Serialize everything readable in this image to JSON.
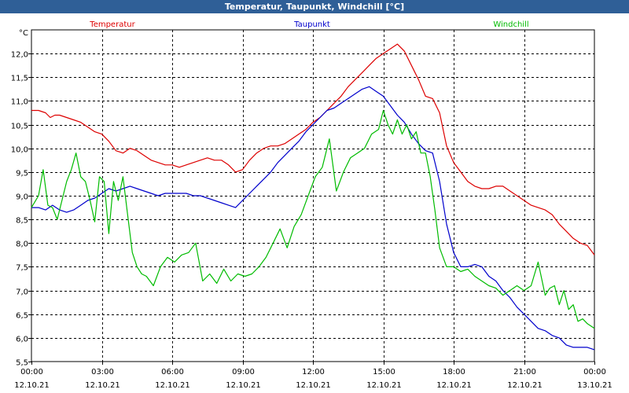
{
  "window": {
    "title": "Temperatur, Taupunkt, Windchill [°C]"
  },
  "chart_data": {
    "type": "line",
    "title": "Temperatur, Taupunkt, Windchill [°C]",
    "ylabel": "°C",
    "ylim": [
      5.5,
      12.5
    ],
    "xlim": [
      0,
      24
    ],
    "grid": true,
    "legend": "top",
    "yticks": [
      "5,5",
      "6,0",
      "6,5",
      "7,0",
      "7,5",
      "8,0",
      "8,5",
      "9,0",
      "9,5",
      "10,0",
      "10,5",
      "11,0",
      "11,5",
      "12,0"
    ],
    "xticks": [
      {
        "time": "00:00",
        "date": "12.10.21"
      },
      {
        "time": "03:00",
        "date": "12.10.21"
      },
      {
        "time": "06:00",
        "date": "12.10.21"
      },
      {
        "time": "09:00",
        "date": "12.10.21"
      },
      {
        "time": "12:00",
        "date": "12.10.21"
      },
      {
        "time": "15:00",
        "date": "12.10.21"
      },
      {
        "time": "18:00",
        "date": "12.10.21"
      },
      {
        "time": "21:00",
        "date": "12.10.21"
      },
      {
        "time": "00:00",
        "date": "13.10.21"
      }
    ],
    "series": [
      {
        "name": "Temperatur",
        "color": "#dd0000",
        "x": [
          0,
          0.3,
          0.6,
          0.8,
          1.0,
          1.2,
          1.5,
          1.8,
          2.1,
          2.4,
          2.7,
          3.0,
          3.3,
          3.6,
          3.9,
          4.2,
          4.5,
          4.8,
          5.1,
          5.4,
          5.7,
          6.0,
          6.3,
          6.6,
          6.9,
          7.2,
          7.5,
          7.8,
          8.1,
          8.4,
          8.7,
          9.0,
          9.3,
          9.6,
          9.9,
          10.2,
          10.5,
          10.8,
          11.1,
          11.4,
          11.7,
          12.0,
          12.3,
          12.6,
          12.9,
          13.2,
          13.5,
          13.8,
          14.1,
          14.4,
          14.7,
          15.0,
          15.3,
          15.6,
          15.9,
          16.2,
          16.5,
          16.8,
          17.1,
          17.4,
          17.7,
          18.0,
          18.3,
          18.6,
          18.9,
          19.2,
          19.5,
          19.8,
          20.1,
          20.4,
          20.7,
          21.0,
          21.3,
          21.6,
          21.9,
          22.2,
          22.5,
          22.8,
          23.1,
          23.4,
          23.7,
          24.0
        ],
        "y": [
          10.8,
          10.8,
          10.75,
          10.65,
          10.7,
          10.7,
          10.65,
          10.6,
          10.55,
          10.45,
          10.35,
          10.3,
          10.15,
          9.95,
          9.9,
          10.0,
          9.95,
          9.85,
          9.75,
          9.7,
          9.65,
          9.65,
          9.6,
          9.65,
          9.7,
          9.75,
          9.8,
          9.75,
          9.75,
          9.65,
          9.5,
          9.55,
          9.75,
          9.9,
          10.0,
          10.05,
          10.05,
          10.1,
          10.2,
          10.3,
          10.4,
          10.55,
          10.65,
          10.8,
          10.95,
          11.1,
          11.3,
          11.45,
          11.6,
          11.75,
          11.9,
          12.0,
          12.1,
          12.2,
          12.05,
          11.75,
          11.45,
          11.1,
          11.05,
          10.75,
          10.05,
          9.7,
          9.5,
          9.3,
          9.2,
          9.15,
          9.15,
          9.2,
          9.2,
          9.1,
          9.0,
          8.9,
          8.8,
          8.75,
          8.7,
          8.6,
          8.4,
          8.25,
          8.1,
          8.0,
          7.95,
          7.75
        ]
      },
      {
        "name": "Taupunkt",
        "color": "#0000cc",
        "x": [
          0,
          0.3,
          0.6,
          0.9,
          1.2,
          1.5,
          1.8,
          2.1,
          2.4,
          2.7,
          3.0,
          3.3,
          3.6,
          3.9,
          4.2,
          4.5,
          4.8,
          5.1,
          5.4,
          5.7,
          6.0,
          6.3,
          6.6,
          6.9,
          7.2,
          7.5,
          7.8,
          8.1,
          8.4,
          8.7,
          9.0,
          9.3,
          9.6,
          9.9,
          10.2,
          10.5,
          10.8,
          11.1,
          11.4,
          11.7,
          12.0,
          12.3,
          12.6,
          12.9,
          13.2,
          13.5,
          13.8,
          14.1,
          14.4,
          14.7,
          15.0,
          15.3,
          15.6,
          15.9,
          16.2,
          16.5,
          16.8,
          17.1,
          17.4,
          17.7,
          18.0,
          18.3,
          18.6,
          18.9,
          19.2,
          19.5,
          19.8,
          20.1,
          20.4,
          20.7,
          21.0,
          21.3,
          21.6,
          21.9,
          22.2,
          22.5,
          22.8,
          23.1,
          23.4,
          23.7,
          24.0
        ],
        "y": [
          8.75,
          8.75,
          8.7,
          8.8,
          8.7,
          8.65,
          8.7,
          8.8,
          8.9,
          8.95,
          9.05,
          9.15,
          9.1,
          9.15,
          9.2,
          9.15,
          9.1,
          9.05,
          9.0,
          9.05,
          9.05,
          9.05,
          9.05,
          9.0,
          9.0,
          8.95,
          8.9,
          8.85,
          8.8,
          8.75,
          8.9,
          9.05,
          9.2,
          9.35,
          9.5,
          9.7,
          9.85,
          10.0,
          10.15,
          10.35,
          10.5,
          10.65,
          10.8,
          10.85,
          10.95,
          11.05,
          11.15,
          11.25,
          11.3,
          11.2,
          11.1,
          10.9,
          10.7,
          10.55,
          10.3,
          10.1,
          9.95,
          9.9,
          9.3,
          8.4,
          7.8,
          7.5,
          7.5,
          7.55,
          7.5,
          7.3,
          7.2,
          7.0,
          6.85,
          6.65,
          6.5,
          6.35,
          6.2,
          6.15,
          6.05,
          6.0,
          5.85,
          5.8,
          5.8,
          5.8,
          5.75
        ]
      },
      {
        "name": "Windchill",
        "color": "#00bb00",
        "x": [
          0,
          0.3,
          0.5,
          0.7,
          0.9,
          1.1,
          1.3,
          1.5,
          1.7,
          1.9,
          2.1,
          2.3,
          2.5,
          2.7,
          2.9,
          3.1,
          3.3,
          3.5,
          3.7,
          3.9,
          4.1,
          4.3,
          4.5,
          4.7,
          4.9,
          5.2,
          5.5,
          5.8,
          6.1,
          6.4,
          6.7,
          7.0,
          7.3,
          7.6,
          7.9,
          8.2,
          8.5,
          8.8,
          9.1,
          9.4,
          9.7,
          10.0,
          10.3,
          10.6,
          10.9,
          11.2,
          11.5,
          11.8,
          12.1,
          12.4,
          12.7,
          13.0,
          13.3,
          13.6,
          13.9,
          14.2,
          14.5,
          14.8,
          15.0,
          15.2,
          15.4,
          15.6,
          15.8,
          16.0,
          16.2,
          16.4,
          16.6,
          16.8,
          17.0,
          17.2,
          17.4,
          17.7,
          18.0,
          18.3,
          18.6,
          18.9,
          19.2,
          19.5,
          19.8,
          20.1,
          20.4,
          20.7,
          21.0,
          21.3,
          21.6,
          21.9,
          22.1,
          22.3,
          22.5,
          22.7,
          22.9,
          23.1,
          23.3,
          23.5,
          23.7,
          24.0
        ],
        "y": [
          8.75,
          9.0,
          9.55,
          8.8,
          8.75,
          8.5,
          8.9,
          9.3,
          9.55,
          9.9,
          9.4,
          9.3,
          8.9,
          8.45,
          9.4,
          9.3,
          8.2,
          9.3,
          8.9,
          9.4,
          8.6,
          7.8,
          7.5,
          7.35,
          7.3,
          7.1,
          7.5,
          7.7,
          7.6,
          7.75,
          7.8,
          8.0,
          7.2,
          7.35,
          7.15,
          7.45,
          7.2,
          7.35,
          7.3,
          7.35,
          7.5,
          7.7,
          8.0,
          8.3,
          7.9,
          8.35,
          8.6,
          9.0,
          9.4,
          9.6,
          10.2,
          9.1,
          9.5,
          9.8,
          9.9,
          10.0,
          10.3,
          10.4,
          10.8,
          10.5,
          10.3,
          10.6,
          10.3,
          10.5,
          10.2,
          10.35,
          9.9,
          9.9,
          9.4,
          8.7,
          7.9,
          7.5,
          7.5,
          7.4,
          7.45,
          7.3,
          7.2,
          7.1,
          7.05,
          6.9,
          7.0,
          7.1,
          7.0,
          7.1,
          7.6,
          6.9,
          7.05,
          7.1,
          6.7,
          7.0,
          6.6,
          6.7,
          6.35,
          6.4,
          6.3,
          6.2
        ]
      }
    ]
  }
}
